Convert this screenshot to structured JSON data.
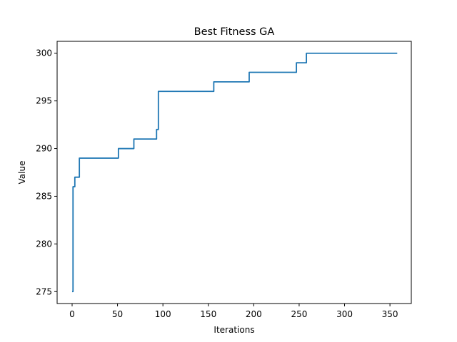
{
  "chart_data": {
    "type": "line",
    "title": "Best Fitness GA",
    "xlabel": "Iterations",
    "ylabel": "Value",
    "xlim": [
      -16.5,
      373.5
    ],
    "ylim": [
      273.75,
      301.25
    ],
    "xticks": [
      0,
      50,
      100,
      150,
      200,
      250,
      300,
      350
    ],
    "yticks": [
      275,
      280,
      285,
      290,
      295,
      300
    ],
    "grid": false,
    "line_color": "#1f77b4",
    "series": [
      {
        "step": true,
        "x": [
          0,
          1,
          3,
          8,
          51,
          68,
          93,
          95,
          96,
          156,
          195,
          247,
          258,
          358
        ],
        "values": [
          275,
          286,
          287,
          289,
          290,
          291,
          292,
          296,
          296,
          297,
          298,
          299,
          300,
          300
        ]
      }
    ]
  }
}
